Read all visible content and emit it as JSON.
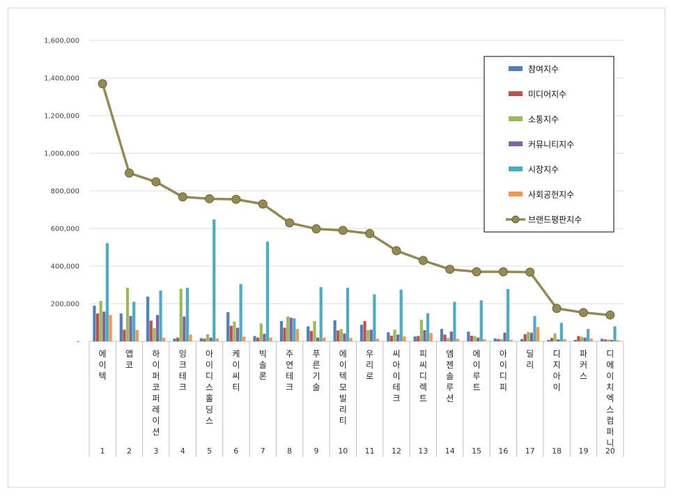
{
  "chart_data": {
    "type": "bar",
    "categories": [
      "에이텍",
      "앱코",
      "하이퍼코퍼레이션",
      "잉크테크",
      "아이디스홀딩스",
      "케이씨티",
      "빅솔론",
      "주연테크",
      "푸른기술",
      "에이텍모빌리티",
      "우리로",
      "씨아이테크",
      "피씨디렉트",
      "엠젠솔루션",
      "에이루트",
      "아이디피",
      "딜리",
      "디지아이",
      "파커스",
      "디에이치엑스컴퍼니"
    ],
    "ranks": [
      "1",
      "2",
      "3",
      "4",
      "5",
      "6",
      "7",
      "8",
      "9",
      "10",
      "11",
      "12",
      "13",
      "14",
      "15",
      "16",
      "17",
      "18",
      "19",
      "20"
    ],
    "ylim": [
      0,
      1600000
    ],
    "yticks": [
      0,
      200000,
      400000,
      600000,
      800000,
      1000000,
      1200000,
      1400000,
      1600000
    ],
    "ytick_labels": [
      "-",
      "200,000",
      "400,000",
      "600,000",
      "800,000",
      "1,000,000",
      "1,200,000",
      "1,400,000",
      "1,600,000"
    ],
    "grid": true,
    "legend_position": "top-right",
    "series": [
      {
        "name": "참여지수",
        "color": "#4f81bd",
        "values": [
          190000,
          148000,
          238000,
          15000,
          17000,
          155000,
          28000,
          108000,
          80000,
          112000,
          88000,
          48000,
          26000,
          66000,
          52000,
          16000,
          12000,
          8000,
          8000,
          14000
        ]
      },
      {
        "name": "미디어지수",
        "color": "#c0504d",
        "values": [
          148000,
          62000,
          110000,
          20000,
          14000,
          83000,
          20000,
          73000,
          55000,
          58000,
          108000,
          30000,
          28000,
          36000,
          30000,
          12000,
          38000,
          18000,
          28000,
          10000
        ]
      },
      {
        "name": "소통지수",
        "color": "#9bbb59",
        "values": [
          215000,
          285000,
          70000,
          280000,
          38000,
          105000,
          95000,
          132000,
          108000,
          65000,
          60000,
          62000,
          115000,
          18000,
          28000,
          12000,
          50000,
          42000,
          24000,
          10000
        ]
      },
      {
        "name": "커뮤니티지수",
        "color": "#8064a2",
        "values": [
          158000,
          135000,
          140000,
          132000,
          20000,
          72000,
          40000,
          126000,
          20000,
          42000,
          62000,
          36000,
          60000,
          52000,
          20000,
          46000,
          46000,
          10000,
          20000,
          8000
        ]
      },
      {
        "name": "시장지수",
        "color": "#4bacc6",
        "values": [
          522000,
          210000,
          270000,
          285000,
          648000,
          305000,
          530000,
          122000,
          288000,
          285000,
          250000,
          275000,
          150000,
          210000,
          218000,
          278000,
          135000,
          98000,
          66000,
          80000
        ]
      },
      {
        "name": "사회공헌지수",
        "color": "#f79646",
        "values": [
          140000,
          60000,
          20000,
          36000,
          15000,
          25000,
          20000,
          66000,
          20000,
          18000,
          14000,
          26000,
          44000,
          14000,
          12000,
          8000,
          76000,
          12000,
          14000,
          6000
        ]
      }
    ],
    "line": {
      "name": "브랜드평판지수",
      "color": "#938953",
      "values": [
        1370000,
        895000,
        848000,
        768000,
        758000,
        755000,
        730000,
        630000,
        598000,
        590000,
        573000,
        482000,
        430000,
        383000,
        370000,
        370000,
        368000,
        175000,
        153000,
        140000
      ]
    }
  }
}
